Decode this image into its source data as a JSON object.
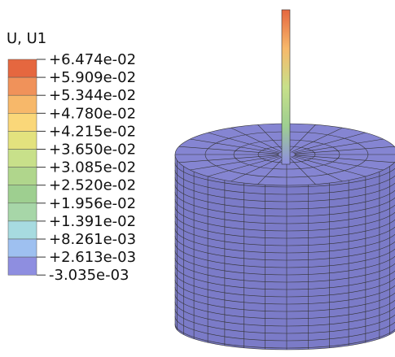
{
  "legend": {
    "title": "U, U1",
    "labels": [
      "+6.474e-02",
      "+5.909e-02",
      "+5.344e-02",
      "+4.780e-02",
      "+4.215e-02",
      "+3.650e-02",
      "+3.085e-02",
      "+2.520e-02",
      "+1.956e-02",
      "+1.391e-02",
      "+8.261e-03",
      "+2.613e-03",
      "-3.035e-03"
    ],
    "colors": [
      "#e5673f",
      "#f0925a",
      "#f7b86a",
      "#fad779",
      "#e3e27e",
      "#c8e08a",
      "#b0d68c",
      "#9ecf90",
      "#a7d6a8",
      "#a7dbe0",
      "#9ec0f0",
      "#8e8ee0"
    ]
  }
}
